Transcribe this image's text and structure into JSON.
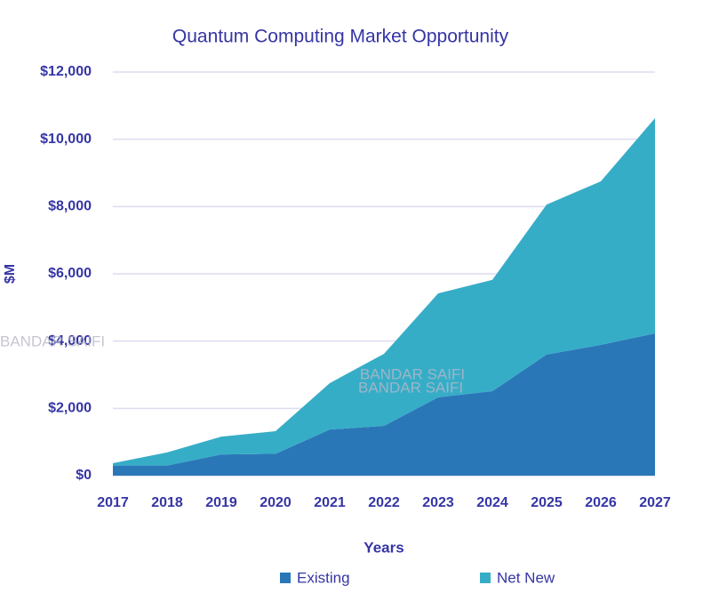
{
  "chart_data": {
    "type": "stacked_area",
    "title": "Quantum Computing Market Opportunity",
    "x_label": "Years",
    "y_label": "$M",
    "categories": [
      "2017",
      "2018",
      "2019",
      "2020",
      "2021",
      "2022",
      "2023",
      "2024",
      "2025",
      "2026",
      "2027"
    ],
    "series": [
      {
        "name": "Existing",
        "color": "#2a77b8",
        "values": [
          300,
          300,
          630,
          650,
          1370,
          1480,
          2330,
          2510,
          3600,
          3890,
          4230
        ]
      },
      {
        "name": "Net New",
        "color": "#36adc7",
        "values": [
          70,
          390,
          530,
          670,
          1380,
          2140,
          3090,
          3310,
          4460,
          4860,
          6400
        ]
      }
    ],
    "ylim": [
      0,
      12000
    ],
    "yticks": [
      {
        "value": 0,
        "label": "$0"
      },
      {
        "value": 2000,
        "label": "$2,000"
      },
      {
        "value": 4000,
        "label": "$4,000"
      },
      {
        "value": 6000,
        "label": "$6,000"
      },
      {
        "value": 8000,
        "label": "$8,000"
      },
      {
        "value": 10000,
        "label": "$10,000"
      },
      {
        "value": 12000,
        "label": "$12,000"
      }
    ],
    "grid": true,
    "legend": "bottom",
    "watermarks": [
      "BANDAR SAIFI",
      "BANDAR SAIFI",
      "BANDAR SAIFI"
    ]
  }
}
